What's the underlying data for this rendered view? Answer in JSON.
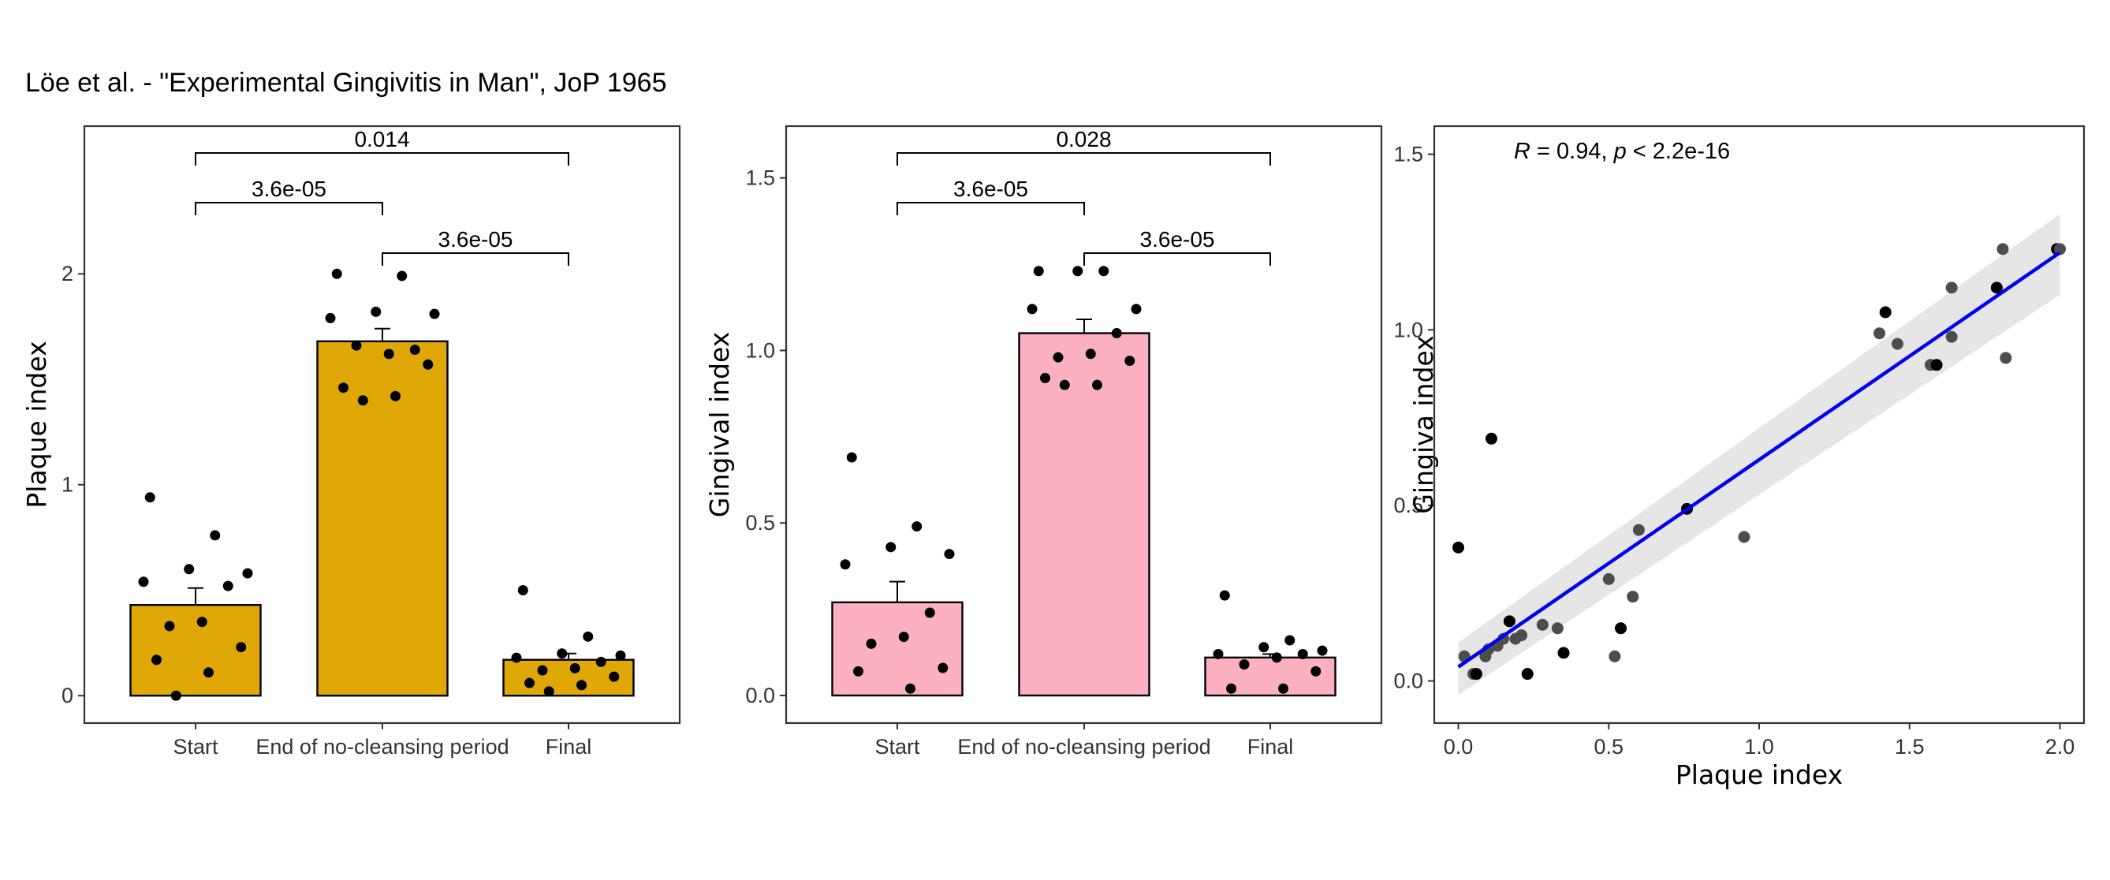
{
  "title": "Löe et al. - \"Experimental Gingivitis in Man\", JoP 1965",
  "colors": {
    "plaque_fill": "#E0A806",
    "gingival_fill": "#FDB0C0",
    "regression_line": "#0000EE",
    "confidence_band": "#E6E6E6",
    "scatter_point": "#4D4D4D"
  },
  "chart_data": [
    {
      "type": "bar",
      "ylabel": "Plaque index",
      "xlabel": "",
      "categories": [
        "Start",
        "End of no-cleansing period",
        "Final"
      ],
      "values": [
        0.43,
        1.68,
        0.17
      ],
      "error_upper": [
        0.51,
        1.74,
        0.2
      ],
      "ylim": [
        -0.13,
        2.7
      ],
      "yticks": [
        0,
        1,
        2
      ],
      "ytick_labels": [
        "0",
        "1",
        "2"
      ],
      "points": [
        [
          0.94,
          0.76,
          0.6,
          0.58,
          0.54,
          0.52,
          0.35,
          0.33,
          0.23,
          0.17,
          0.11,
          0.0
        ],
        [
          2.0,
          1.99,
          1.82,
          1.81,
          1.79,
          1.64,
          1.62,
          1.66,
          1.57,
          1.46,
          1.42,
          1.4
        ],
        [
          0.5,
          0.28,
          0.2,
          0.19,
          0.18,
          0.16,
          0.13,
          0.12,
          0.09,
          0.06,
          0.05,
          0.02
        ]
      ],
      "comparisons": [
        {
          "from": 0,
          "to": 1,
          "label": "3.6e-05",
          "level": 0
        },
        {
          "from": 1,
          "to": 2,
          "label": "3.6e-05",
          "level": 0
        },
        {
          "from": 0,
          "to": 2,
          "label": "0.014",
          "level": 1
        }
      ]
    },
    {
      "type": "bar",
      "ylabel": "Gingival index",
      "xlabel": "",
      "categories": [
        "Start",
        "End of no-cleansing period",
        "Final"
      ],
      "values": [
        0.27,
        1.05,
        0.11
      ],
      "error_upper": [
        0.33,
        1.09,
        0.12
      ],
      "ylim": [
        -0.08,
        1.65
      ],
      "yticks": [
        0.0,
        0.5,
        1.0,
        1.5
      ],
      "ytick_labels": [
        "0.0",
        "0.5",
        "1.0",
        "1.5"
      ],
      "points": [
        [
          0.69,
          0.49,
          0.43,
          0.41,
          0.38,
          0.24,
          0.17,
          0.15,
          0.08,
          0.07,
          0.02
        ],
        [
          1.23,
          1.23,
          1.23,
          1.12,
          1.12,
          1.05,
          0.99,
          0.98,
          0.97,
          0.92,
          0.9,
          0.9
        ],
        [
          0.29,
          0.16,
          0.14,
          0.13,
          0.12,
          0.12,
          0.11,
          0.09,
          0.07,
          0.02,
          0.02
        ]
      ],
      "comparisons": [
        {
          "from": 0,
          "to": 1,
          "label": "3.6e-05",
          "level": 0
        },
        {
          "from": 1,
          "to": 2,
          "label": "3.6e-05",
          "level": 0
        },
        {
          "from": 0,
          "to": 2,
          "label": "0.028",
          "level": 1
        }
      ]
    },
    {
      "type": "scatter",
      "xlabel": "Plaque index",
      "ylabel": "Gingiva index",
      "annotation": {
        "r_text": "R",
        "rest": " = 0.94, ",
        "p_text": "p",
        "p_rest": " < 2.2e-16"
      },
      "xlim": [
        -0.08,
        2.08
      ],
      "ylim": [
        -0.12,
        1.58
      ],
      "xticks": [
        0.0,
        0.5,
        1.0,
        1.5,
        2.0
      ],
      "xtick_labels": [
        "0.0",
        "0.5",
        "1.0",
        "1.5",
        "2.0"
      ],
      "yticks": [
        0.0,
        0.5,
        1.0,
        1.5
      ],
      "ytick_labels": [
        "0.0",
        "0.5",
        "1.0",
        "1.5"
      ],
      "fit": {
        "x0": 0.0,
        "y0": 0.04,
        "x1": 2.0,
        "y1": 1.22
      },
      "band": {
        "lower_at_x0": -0.04,
        "upper_at_x0": 0.11,
        "lower_at_x1": 1.1,
        "upper_at_x1": 1.33
      },
      "x": [
        0.0,
        0.02,
        0.05,
        0.06,
        0.09,
        0.1,
        0.11,
        0.13,
        0.15,
        0.17,
        0.19,
        0.21,
        0.23,
        0.28,
        0.33,
        0.35,
        0.5,
        0.52,
        0.54,
        0.58,
        0.6,
        0.76,
        0.95,
        1.4,
        1.42,
        1.46,
        1.57,
        1.59,
        1.64,
        1.64,
        1.79,
        1.81,
        1.82,
        1.99,
        2.0
      ],
      "y": [
        0.38,
        0.07,
        0.02,
        0.02,
        0.07,
        0.09,
        0.69,
        0.1,
        0.12,
        0.17,
        0.12,
        0.13,
        0.02,
        0.16,
        0.15,
        0.08,
        0.29,
        0.07,
        0.15,
        0.24,
        0.43,
        0.49,
        0.41,
        0.99,
        1.05,
        0.96,
        0.9,
        0.9,
        1.12,
        0.98,
        1.12,
        1.23,
        0.92,
        1.23,
        1.23
      ]
    }
  ]
}
